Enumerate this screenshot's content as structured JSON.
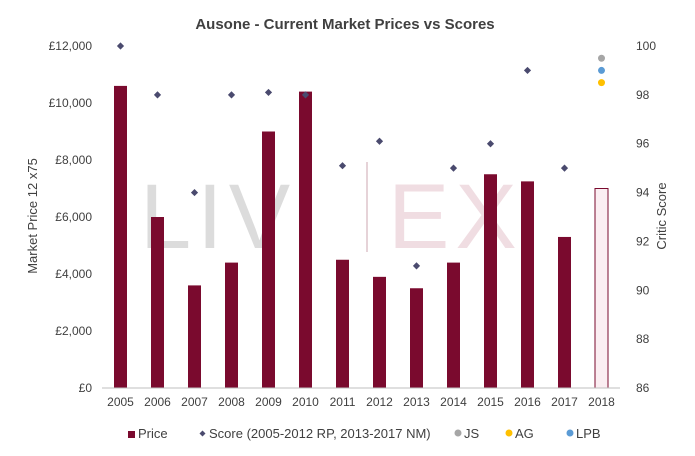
{
  "chart_data": {
    "type": "bar",
    "title": "Ausone - Current Market Prices vs Scores",
    "ylabel": "Market Price 12 x75",
    "y2label": "Critic Score",
    "watermark": "LIV-EX",
    "categories": [
      "2005",
      "2006",
      "2007",
      "2008",
      "2009",
      "2010",
      "2011",
      "2012",
      "2013",
      "2014",
      "2015",
      "2016",
      "2017",
      "2018"
    ],
    "ylim": [
      0,
      12000
    ],
    "yticks": [
      0,
      2000,
      4000,
      6000,
      8000,
      10000,
      12000
    ],
    "ytick_labels": [
      "£0",
      "£2,000",
      "£4,000",
      "£6,000",
      "£8,000",
      "£10,000",
      "£12,000"
    ],
    "y2lim": [
      86,
      100
    ],
    "y2ticks": [
      86,
      88,
      90,
      92,
      94,
      96,
      98,
      100
    ],
    "y2tick_labels": [
      "86",
      "88",
      "90",
      "92",
      "94",
      "96",
      "98",
      "100"
    ],
    "grid": false,
    "legend_position": "bottom",
    "series": [
      {
        "name": "Price",
        "kind": "bar",
        "axis": "left",
        "color": "#7a0a2e",
        "values": [
          10600,
          6000,
          3600,
          4400,
          9000,
          10400,
          4500,
          3900,
          3500,
          4400,
          7500,
          7250,
          5300,
          7000
        ],
        "outlined_last": true,
        "outline_fill": "#fbeef2"
      },
      {
        "name": "Score (2005-2012 RP, 2013-2017 NM)",
        "kind": "scatter",
        "axis": "right",
        "marker": "diamond",
        "color": "#4a4a6e",
        "points": [
          {
            "x": "2005",
            "y": 100
          },
          {
            "x": "2006",
            "y": 98
          },
          {
            "x": "2007",
            "y": 94
          },
          {
            "x": "2008",
            "y": 98
          },
          {
            "x": "2009",
            "y": 98.1
          },
          {
            "x": "2010",
            "y": 98
          },
          {
            "x": "2011",
            "y": 95.1
          },
          {
            "x": "2012",
            "y": 96.1
          },
          {
            "x": "2013",
            "y": 91
          },
          {
            "x": "2014",
            "y": 95
          },
          {
            "x": "2015",
            "y": 96
          },
          {
            "x": "2016",
            "y": 99
          },
          {
            "x": "2017",
            "y": 95
          }
        ]
      },
      {
        "name": "JS",
        "kind": "scatter",
        "axis": "right",
        "marker": "circle",
        "color": "#a6a6a6",
        "points": [
          {
            "x": "2018",
            "y": 99.5
          }
        ]
      },
      {
        "name": "AG",
        "kind": "scatter",
        "axis": "right",
        "marker": "circle",
        "color": "#ffc000",
        "points": [
          {
            "x": "2018",
            "y": 98.5
          }
        ]
      },
      {
        "name": "LPB",
        "kind": "scatter",
        "axis": "right",
        "marker": "circle",
        "color": "#5b9bd5",
        "points": [
          {
            "x": "2018",
            "y": 99
          }
        ]
      }
    ]
  }
}
